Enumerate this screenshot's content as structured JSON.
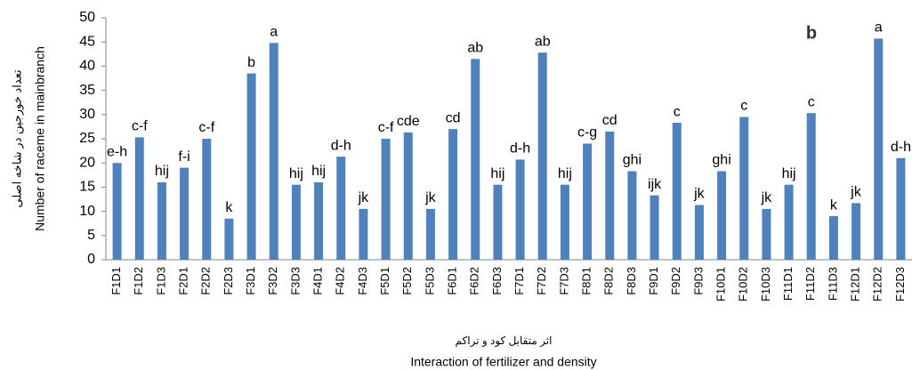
{
  "chart_data": {
    "type": "bar",
    "panel_label": "b",
    "y_label": [
      "تعداد خورجین در شاخه اصلی",
      "Number of raceme in mainbranch"
    ],
    "x_label": [
      "اثر متقابل کود و تراکم",
      "Interaction of fertilizer and density"
    ],
    "categories": [
      "F1D1",
      "F1D2",
      "F1D3",
      "F2D1",
      "F2D2",
      "F2D3",
      "F3D1",
      "F3D2",
      "F3D3",
      "F4D1",
      "F4D2",
      "F4D3",
      "F5D1",
      "F5D2",
      "F5D3",
      "F6D1",
      "F6D2",
      "F6D3",
      "F7D1",
      "F7D2",
      "F7D3",
      "F8D1",
      "F8D2",
      "F8D3",
      "F9D1",
      "F9D2",
      "F9D3",
      "F10D1",
      "F10D2",
      "F10D3",
      "F11D1",
      "F11D2",
      "F11D3",
      "F12D1",
      "F12D2",
      "F12D3"
    ],
    "values": [
      20,
      25.3,
      16,
      19,
      25,
      8.5,
      38.5,
      44.8,
      15.5,
      16,
      21.3,
      10.5,
      25,
      26.3,
      10.5,
      27,
      41.5,
      15.5,
      20.7,
      42.8,
      15.5,
      24,
      26.5,
      18.3,
      13.3,
      28.3,
      11.3,
      18.3,
      29.5,
      10.5,
      15.5,
      30.3,
      9,
      11.7,
      45.7,
      21
    ],
    "annotations": [
      "e-h",
      "c-f",
      "hij",
      "f-i",
      "c-f",
      "k",
      "b",
      "a",
      "hij",
      "hij",
      "d-h",
      "jk",
      "c-f",
      "cde",
      "jk",
      "cd",
      "ab",
      "hij",
      "d-h",
      "ab",
      "hij",
      "c-g",
      "cd",
      "ghi",
      "ijk",
      "c",
      "jk",
      "ghi",
      "c",
      "jk",
      "hij",
      "c",
      "k",
      "jk",
      "a",
      "d-h"
    ],
    "color": "#4f81bd",
    "ylim": [
      0,
      50
    ],
    "yticks": [
      0,
      5,
      10,
      15,
      20,
      25,
      30,
      35,
      40,
      45,
      50
    ],
    "grid": false
  }
}
